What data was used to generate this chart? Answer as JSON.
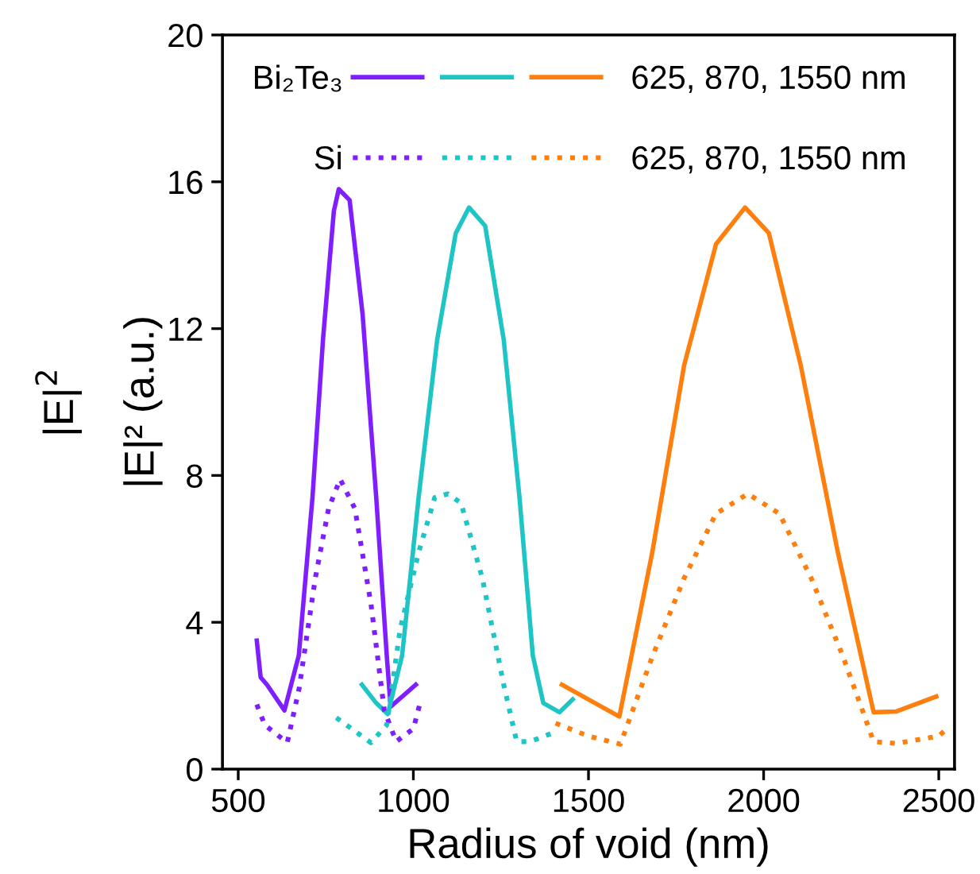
{
  "chart_data": {
    "type": "line",
    "xlabel": "Radius of void (nm)",
    "ylabel": "|E|² (a.u.)",
    "xlim": [
      455,
      2545
    ],
    "xticks": [
      500,
      1000,
      1500,
      2000,
      2500
    ],
    "ylim": [
      0,
      20
    ],
    "yticks": [
      0,
      4,
      8,
      12,
      16,
      20
    ],
    "grid": false,
    "legend": "top left",
    "marker": "none",
    "annotations": [
      "625, 870, 1550 nm",
      "625, 870, 1550 nm",
      "|E|$^{2}$"
    ],
    "series": [
      {
        "name": "Bi₂Te₃",
        "color": "#7f1fff",
        "line_style": "solid",
        "x": [
          553,
          564,
          582,
          632,
          673,
          712,
          742,
          773,
          787,
          818,
          855,
          894,
          924,
          935,
          1007
        ],
        "values": [
          3.5,
          2.5,
          2.3,
          1.6,
          3.1,
          7.4,
          11.7,
          15.2,
          15.8,
          15.5,
          12.4,
          7.4,
          3.1,
          1.7,
          2.3
        ]
      },
      {
        "color": "#1fc4c4",
        "line_style": "solid",
        "x": [
          853,
          894,
          927,
          968,
          1015,
          1068,
          1121,
          1159,
          1205,
          1258,
          1303,
          1341,
          1371,
          1417,
          1455
        ],
        "values": [
          2.3,
          1.8,
          1.5,
          3.1,
          7.4,
          11.7,
          14.6,
          15.3,
          14.8,
          11.7,
          7.4,
          3.1,
          1.8,
          1.55,
          1.9
        ]
      },
      {
        "color": "#ff7f0e",
        "line_style": "solid",
        "x": [
          1424,
          1588,
          1682,
          1773,
          1864,
          1947,
          2015,
          2106,
          2212,
          2314,
          2379,
          2493
        ],
        "values": [
          2.3,
          1.43,
          5.9,
          11.0,
          14.3,
          15.3,
          14.6,
          11.0,
          5.9,
          1.55,
          1.57,
          1.98
        ]
      },
      {
        "name": "Si",
        "color": "#7f1fff",
        "line_style": "dotted",
        "x": [
          553,
          576,
          640,
          674,
          720,
          758,
          791,
          833,
          879,
          917,
          951,
          1000,
          1020
        ],
        "values": [
          1.76,
          1.2,
          0.72,
          2.2,
          5.2,
          7.1,
          7.9,
          7.1,
          4.5,
          1.6,
          0.75,
          1.1,
          1.83
        ]
      },
      {
        "color": "#1fc4c4",
        "line_style": "dotted",
        "x": [
          780,
          879,
          924,
          962,
          1015,
          1061,
          1099,
          1136,
          1197,
          1258,
          1295,
          1333,
          1394
        ],
        "values": [
          1.4,
          0.72,
          1.2,
          3.8,
          5.9,
          7.4,
          7.5,
          7.25,
          5.2,
          2.3,
          0.75,
          0.75,
          0.97
        ]
      },
      {
        "color": "#ff7f0e",
        "line_style": "dotted",
        "x": [
          1406,
          1500,
          1591,
          1682,
          1773,
          1864,
          1955,
          2045,
          2136,
          2227,
          2314,
          2379,
          2500,
          2523
        ],
        "values": [
          1.25,
          0.9,
          0.68,
          3.06,
          5.2,
          6.96,
          7.5,
          6.96,
          5.2,
          3.06,
          0.75,
          0.7,
          0.9,
          1.1
        ]
      }
    ]
  }
}
